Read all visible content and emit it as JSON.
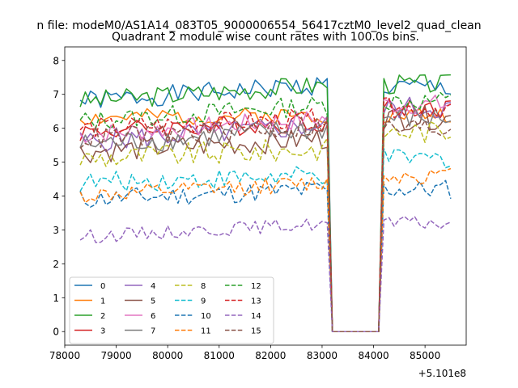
{
  "chart_data": {
    "type": "line",
    "suptitle": "n file: modeM0/AS1A14_083T05_9000006554_56417cztM0_level2_quad_clean",
    "title": "Quadrant 2 module wise count rates with 100.0s bins.",
    "xlabel": "",
    "ylabel": "",
    "x_offset_label": "+5.101e8",
    "xlim": [
      78000,
      85800
    ],
    "ylim": [
      -0.4,
      8.4
    ],
    "x_ticks": [
      78000,
      79000,
      80000,
      81000,
      82000,
      83000,
      84000,
      85000
    ],
    "x_tick_labels": [
      "78000",
      "79000",
      "80000",
      "81000",
      "82000",
      "83000",
      "84000",
      "85000"
    ],
    "y_ticks": [
      0,
      1,
      2,
      3,
      4,
      5,
      6,
      7,
      8
    ],
    "y_tick_labels": [
      "0",
      "1",
      "2",
      "3",
      "4",
      "5",
      "6",
      "7",
      "8"
    ],
    "grid": false,
    "legend_position": "lower-left",
    "legend_columns": 4,
    "x_start": 78300,
    "x_step": 100,
    "gap": {
      "x0": 83200,
      "x1": 84100
    },
    "series": [
      {
        "name": "0",
        "color": "#1f77b4",
        "dash": "solid",
        "base": 6.8,
        "drift": 0.5,
        "post": 7.2,
        "amp": 0.3,
        "seed": 1
      },
      {
        "name": "1",
        "color": "#ff7f0e",
        "dash": "solid",
        "base": 6.3,
        "drift": 0.1,
        "post": 6.4,
        "amp": 0.25,
        "seed": 2
      },
      {
        "name": "2",
        "color": "#2ca02c",
        "dash": "solid",
        "base": 6.8,
        "drift": 0.5,
        "post": 7.3,
        "amp": 0.3,
        "seed": 3
      },
      {
        "name": "3",
        "color": "#d62728",
        "dash": "solid",
        "base": 5.9,
        "drift": 0.3,
        "post": 6.6,
        "amp": 0.3,
        "seed": 4
      },
      {
        "name": "4",
        "color": "#9467bd",
        "dash": "solid",
        "base": 5.6,
        "drift": 0.5,
        "post": 6.6,
        "amp": 0.35,
        "seed": 5
      },
      {
        "name": "5",
        "color": "#8c564b",
        "dash": "solid",
        "base": 5.3,
        "drift": 0.4,
        "post": 6.3,
        "amp": 0.35,
        "seed": 6
      },
      {
        "name": "6",
        "color": "#e377c2",
        "dash": "solid",
        "base": 5.8,
        "drift": 0.5,
        "post": 6.7,
        "amp": 0.3,
        "seed": 7
      },
      {
        "name": "7",
        "color": "#7f7f7f",
        "dash": "solid",
        "base": 5.5,
        "drift": 0.5,
        "post": 6.3,
        "amp": 0.35,
        "seed": 8
      },
      {
        "name": "8",
        "color": "#bcbd22",
        "dash": "dashed",
        "base": 5.1,
        "drift": 0.3,
        "post": 5.9,
        "amp": 0.35,
        "seed": 9
      },
      {
        "name": "9",
        "color": "#17becf",
        "dash": "dashed",
        "base": 4.4,
        "drift": 0.2,
        "post": 5.1,
        "amp": 0.3,
        "seed": 10
      },
      {
        "name": "10",
        "color": "#1f77b4",
        "dash": "dashed",
        "base": 3.9,
        "drift": 0.3,
        "post": 4.2,
        "amp": 0.3,
        "seed": 11
      },
      {
        "name": "11",
        "color": "#ff7f0e",
        "dash": "dashed",
        "base": 4.0,
        "drift": 0.4,
        "post": 4.6,
        "amp": 0.25,
        "seed": 12
      },
      {
        "name": "12",
        "color": "#2ca02c",
        "dash": "dashed",
        "base": 6.2,
        "drift": 0.5,
        "post": 6.8,
        "amp": 0.3,
        "seed": 13
      },
      {
        "name": "13",
        "color": "#d62728",
        "dash": "dashed",
        "base": 6.0,
        "drift": 0.3,
        "post": 6.6,
        "amp": 0.3,
        "seed": 14
      },
      {
        "name": "14",
        "color": "#9467bd",
        "dash": "dashed",
        "base": 2.8,
        "drift": 0.4,
        "post": 3.2,
        "amp": 0.2,
        "seed": 15
      },
      {
        "name": "15",
        "color": "#8c564b",
        "dash": "dashed",
        "base": 5.7,
        "drift": 0.4,
        "post": 6.0,
        "amp": 0.35,
        "seed": 16
      }
    ]
  }
}
